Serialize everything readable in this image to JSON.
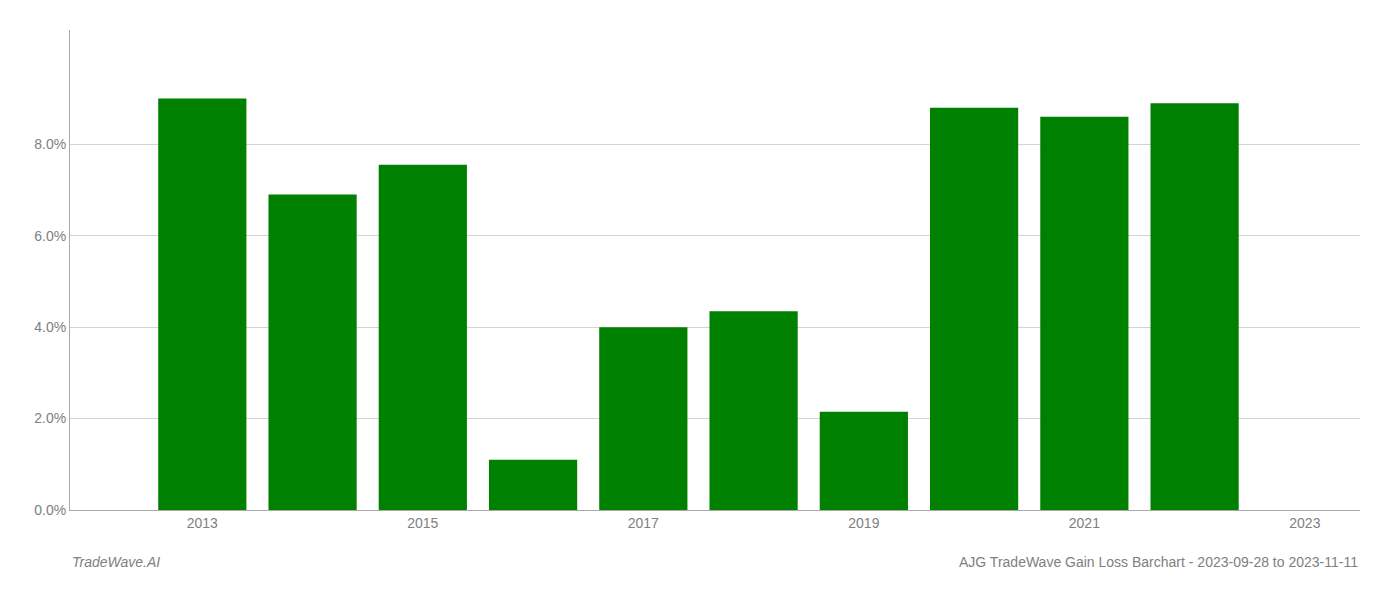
{
  "chart_data": {
    "type": "bar",
    "x": [
      2013,
      2014,
      2015,
      2016,
      2017,
      2018,
      2019,
      2020,
      2021,
      2022
    ],
    "values": [
      0.09,
      0.069,
      0.0755,
      0.011,
      0.04,
      0.0435,
      0.0215,
      0.088,
      0.086,
      0.089
    ],
    "color": "#008000",
    "xlim": [
      2011.8,
      2023.5
    ],
    "xticks": [
      2013,
      2015,
      2017,
      2019,
      2021,
      2023
    ],
    "ylim": [
      0,
      0.105
    ],
    "yticks": [
      {
        "value": 0.0,
        "label": "0.0%"
      },
      {
        "value": 0.02,
        "label": "2.0%"
      },
      {
        "value": 0.04,
        "label": "4.0%"
      },
      {
        "value": 0.06,
        "label": "6.0%"
      },
      {
        "value": 0.08,
        "label": "8.0%"
      }
    ],
    "grid": true,
    "annotations": [
      "TradeWave.AI",
      "AJG TradeWave Gain Loss Barchart - 2023-09-28 to 2023-11-11"
    ]
  }
}
